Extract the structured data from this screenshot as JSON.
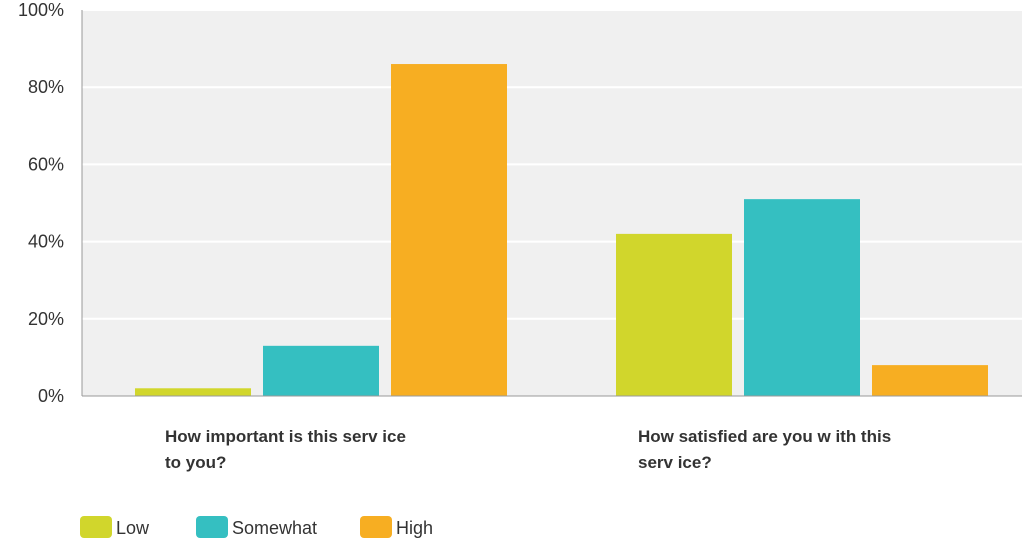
{
  "chart_data": {
    "type": "bar",
    "categories": [
      [
        "How important is this serv ice",
        "to you?"
      ],
      [
        "How satisfied are you w ith this",
        "serv ice?"
      ]
    ],
    "series": [
      {
        "name": "Low",
        "color": "#D1D62C",
        "values": [
          2,
          42
        ]
      },
      {
        "name": "Somewhat",
        "color": "#35BFC1",
        "values": [
          13,
          51
        ]
      },
      {
        "name": "High",
        "color": "#F7AE22",
        "values": [
          86,
          8
        ]
      }
    ],
    "y_ticks": [
      "0%",
      "20%",
      "40%",
      "60%",
      "80%",
      "100%"
    ],
    "ylim": [
      0,
      100
    ],
    "grid": true,
    "legend_position": "bottom-left",
    "colors": {
      "plot_background": "#F0F0F0",
      "gridline": "#FFFFFF",
      "axis": "#999999"
    }
  }
}
